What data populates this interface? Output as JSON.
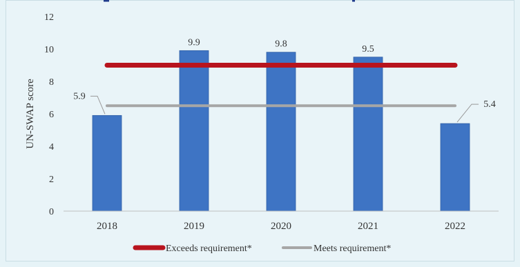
{
  "chart_data": {
    "type": "bar",
    "categories": [
      "2018",
      "2019",
      "2020",
      "2021",
      "2022"
    ],
    "series": [
      {
        "values": [
          5.9,
          9.9,
          9.8,
          9.5,
          5.4
        ],
        "color": "#3e74c4"
      }
    ],
    "data_labels": [
      "5.9",
      "9.9",
      "9.8",
      "9.5",
      "5.4"
    ],
    "reference_lines": [
      {
        "name": "Exceeds requirement*",
        "value": 9,
        "color": "#b8141e"
      },
      {
        "name": "Meets requirement*",
        "value": 6.5,
        "color": "#a6a6a6"
      }
    ],
    "ylabel": "UN-SWAP score",
    "ylim": [
      0,
      12
    ],
    "yticks": [
      "0",
      "2",
      "4",
      "6",
      "8",
      "10",
      "12"
    ],
    "grid": false,
    "legend_position": "bottom"
  }
}
